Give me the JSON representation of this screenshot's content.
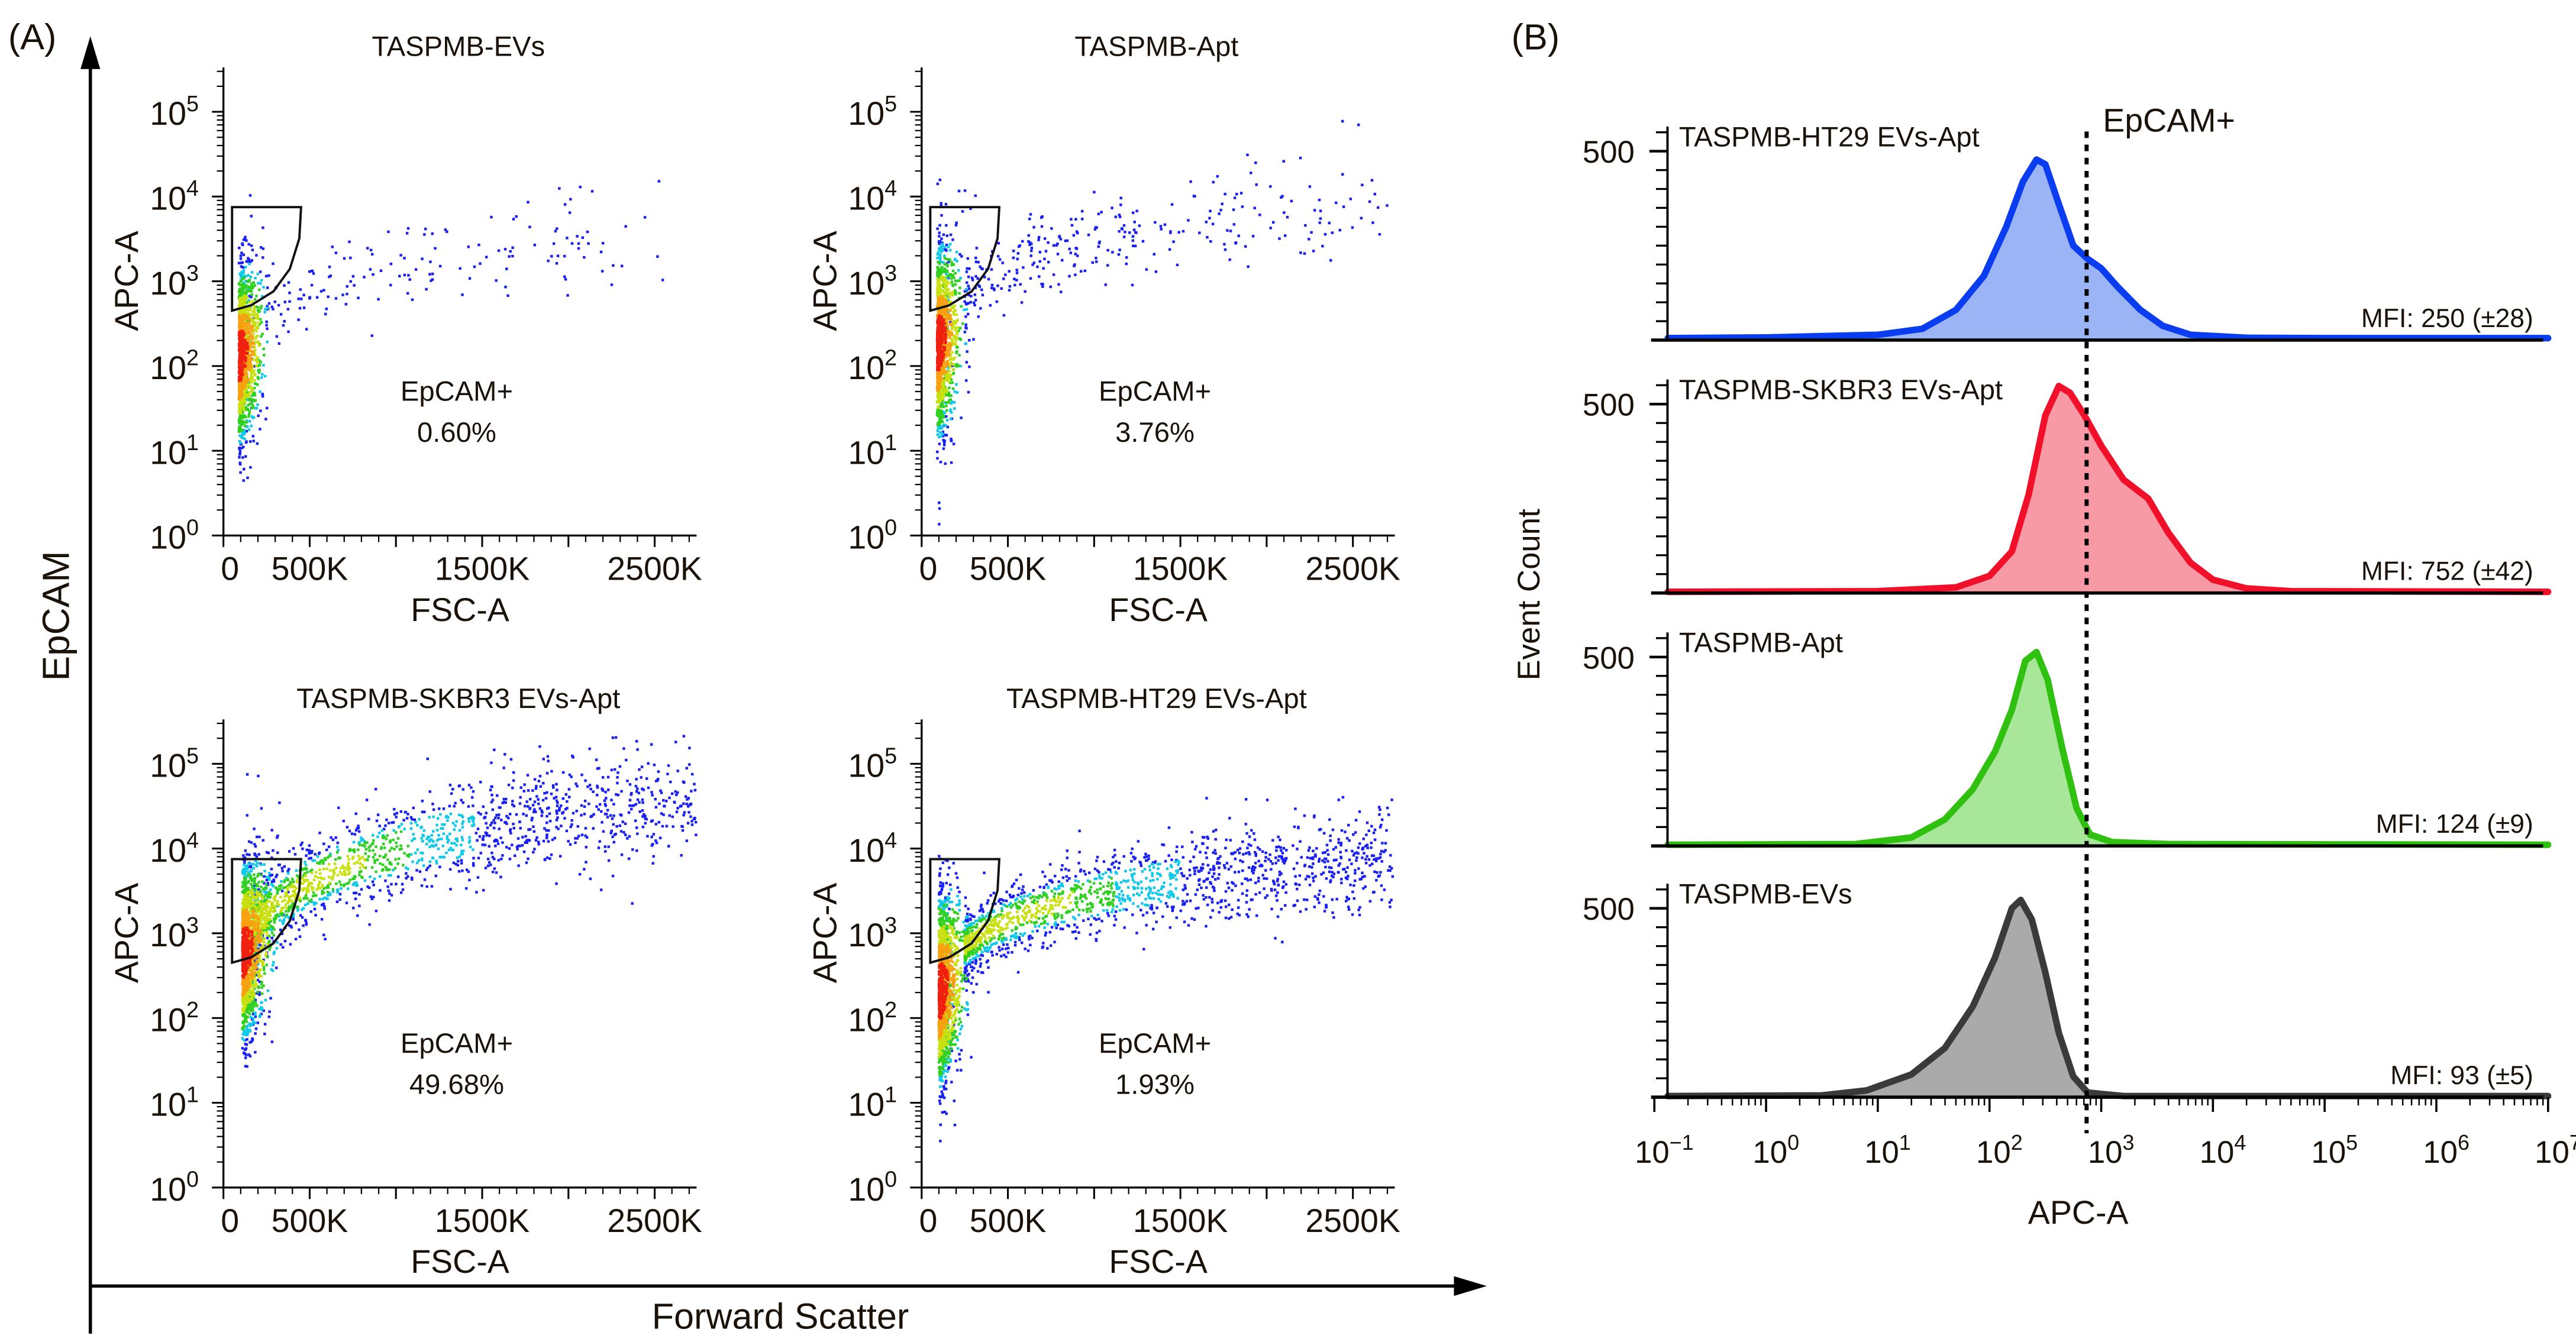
{
  "panel_labels": {
    "a": "(A)",
    "b": "(B)"
  },
  "panel_a": {
    "y_axis_label": "EpCAM",
    "x_axis_label": "Forward Scatter"
  },
  "chart_data": [
    {
      "type": "scatter",
      "title": "TASPMB-EVs",
      "xlabel": "FSC-A",
      "ylabel": "APC-A",
      "x_unit": "K",
      "xlim": [
        0,
        2750
      ],
      "xticks": [
        "0",
        "500K",
        "1500K",
        "2500K"
      ],
      "xtick_values": [
        0,
        500,
        1500,
        2500
      ],
      "y_scale": "log10",
      "ylim_log10": [
        0,
        5.5
      ],
      "ytick_base": "10",
      "ytick_exponents": [
        "0",
        "1",
        "2",
        "3",
        "4",
        "5"
      ],
      "gate": {
        "label": "EpCAM+",
        "percent": "0.60%",
        "polygon": [
          [
            50,
            450
          ],
          [
            160,
            520
          ],
          [
            290,
            760
          ],
          [
            385,
            1400
          ],
          [
            440,
            3200
          ],
          [
            450,
            7500
          ],
          [
            50,
            7500
          ]
        ]
      },
      "population": {
        "core": {
          "x_mean": 90,
          "x_sd": 55,
          "log_y_mean": 2.1,
          "log_y_sd": 0.5,
          "n": 1300
        },
        "tail": {
          "x_start": 250,
          "x_end": 2600,
          "log_y_start": 2.55,
          "log_y_end": 3.55,
          "spread": 0.2,
          "n": 160
        }
      }
    },
    {
      "type": "scatter",
      "title": "TASPMB-Apt",
      "xlabel": "FSC-A",
      "ylabel": "APC-A",
      "x_unit": "K",
      "xlim": [
        0,
        2750
      ],
      "xticks": [
        "0",
        "500K",
        "1500K",
        "2500K"
      ],
      "xtick_values": [
        0,
        500,
        1500,
        2500
      ],
      "y_scale": "log10",
      "ylim_log10": [
        0,
        5.5
      ],
      "ytick_base": "10",
      "ytick_exponents": [
        "0",
        "1",
        "2",
        "3",
        "4",
        "5"
      ],
      "gate": {
        "label": "EpCAM+",
        "percent": "3.76%",
        "polygon": [
          [
            50,
            450
          ],
          [
            160,
            520
          ],
          [
            290,
            760
          ],
          [
            385,
            1400
          ],
          [
            440,
            3200
          ],
          [
            450,
            7500
          ],
          [
            50,
            7500
          ]
        ]
      },
      "population": {
        "core": {
          "x_mean": 90,
          "x_sd": 55,
          "log_y_mean": 2.25,
          "log_y_sd": 0.55,
          "n": 1400
        },
        "tail": {
          "x_start": 250,
          "x_end": 2700,
          "log_y_start": 2.85,
          "log_y_end": 3.95,
          "spread": 0.22,
          "n": 300
        }
      }
    },
    {
      "type": "scatter",
      "title": "TASPMB-SKBR3 EVs-Apt",
      "xlabel": "FSC-A",
      "ylabel": "APC-A",
      "x_unit": "K",
      "xlim": [
        0,
        2750
      ],
      "xticks": [
        "0",
        "500K",
        "1500K",
        "2500K"
      ],
      "xtick_values": [
        0,
        500,
        1500,
        2500
      ],
      "y_scale": "log10",
      "ylim_log10": [
        0,
        5.5
      ],
      "ytick_base": "10",
      "ytick_exponents": [
        "0",
        "1",
        "2",
        "3",
        "4",
        "5"
      ],
      "gate": {
        "label": "EpCAM+",
        "percent": "49.68%",
        "polygon": [
          [
            50,
            450
          ],
          [
            160,
            520
          ],
          [
            290,
            760
          ],
          [
            385,
            1400
          ],
          [
            440,
            3200
          ],
          [
            450,
            7500
          ],
          [
            50,
            7500
          ]
        ]
      },
      "population": {
        "core": {
          "x_mean": 110,
          "x_sd": 70,
          "log_y_mean": 2.75,
          "log_y_sd": 0.5,
          "n": 1500
        },
        "tail": {
          "x_start": 180,
          "x_end": 2750,
          "log_y_start": 3.1,
          "log_y_end": 4.6,
          "spread": 0.24,
          "n": 1500
        }
      }
    },
    {
      "type": "scatter",
      "title": "TASPMB-HT29 EVs-Apt",
      "xlabel": "FSC-A",
      "ylabel": "APC-A",
      "x_unit": "K",
      "xlim": [
        0,
        2750
      ],
      "xticks": [
        "0",
        "500K",
        "1500K",
        "2500K"
      ],
      "xtick_values": [
        0,
        500,
        1500,
        2500
      ],
      "y_scale": "log10",
      "ylim_log10": [
        0,
        5.5
      ],
      "ytick_base": "10",
      "ytick_exponents": [
        "0",
        "1",
        "2",
        "3",
        "4",
        "5"
      ],
      "gate": {
        "label": "EpCAM+",
        "percent": "1.93%",
        "polygon": [
          [
            50,
            450
          ],
          [
            160,
            520
          ],
          [
            290,
            760
          ],
          [
            385,
            1400
          ],
          [
            440,
            3200
          ],
          [
            450,
            7500
          ],
          [
            50,
            7500
          ]
        ]
      },
      "population": {
        "core": {
          "x_mean": 100,
          "x_sd": 60,
          "log_y_mean": 2.3,
          "log_y_sd": 0.55,
          "n": 1500
        },
        "tail": {
          "x_start": 250,
          "x_end": 2750,
          "log_y_start": 2.85,
          "log_y_end": 3.9,
          "spread": 0.2,
          "n": 1500
        }
      }
    },
    {
      "type": "area",
      "xlabel": "APC-A",
      "ylabel": "Event Count",
      "x_scale": "log10",
      "xlim_log10": [
        -0.88,
        7
      ],
      "xtick_base": "10",
      "xtick_exponents": [
        "−1",
        "0",
        "1",
        "2",
        "3",
        "4",
        "5",
        "6",
        "7"
      ],
      "ytick_label": "500",
      "ytick_value": 500,
      "threshold": {
        "label": "EpCAM+",
        "value": 740
      },
      "series": [
        {
          "name": "TASPMB-HT29 EVs-Apt",
          "mfi": "MFI: 250 (±28)",
          "color": "#0a3cf0",
          "fill": "#9ab4f5",
          "points": [
            [
              -0.88,
              5
            ],
            [
              0,
              7
            ],
            [
              1,
              14
            ],
            [
              1.4,
              30
            ],
            [
              1.7,
              80
            ],
            [
              1.95,
              170
            ],
            [
              2.15,
              300
            ],
            [
              2.3,
              420
            ],
            [
              2.42,
              478
            ],
            [
              2.5,
              465
            ],
            [
              2.62,
              360
            ],
            [
              2.75,
              250
            ],
            [
              2.88,
              215
            ],
            [
              3.0,
              190
            ],
            [
              3.15,
              140
            ],
            [
              3.35,
              80
            ],
            [
              3.55,
              38
            ],
            [
              3.8,
              14
            ],
            [
              4.3,
              6
            ],
            [
              5,
              5
            ],
            [
              7,
              5
            ]
          ]
        },
        {
          "name": "TASPMB-SKBR3 EVs-Apt",
          "mfi": "MFI: 752 (±42)",
          "color": "#f0102a",
          "fill": "#f79aa6",
          "points": [
            [
              -0.88,
              3
            ],
            [
              1,
              5
            ],
            [
              1.7,
              15
            ],
            [
              2.0,
              45
            ],
            [
              2.2,
              110
            ],
            [
              2.35,
              260
            ],
            [
              2.5,
              470
            ],
            [
              2.62,
              548
            ],
            [
              2.72,
              530
            ],
            [
              2.85,
              470
            ],
            [
              3.0,
              390
            ],
            [
              3.2,
              300
            ],
            [
              3.42,
              250
            ],
            [
              3.6,
              160
            ],
            [
              3.8,
              80
            ],
            [
              4.0,
              35
            ],
            [
              4.3,
              12
            ],
            [
              4.7,
              5
            ],
            [
              7,
              3
            ]
          ]
        },
        {
          "name": "TASPMB-Apt",
          "mfi": "MFI: 124 (±9)",
          "color": "#30c010",
          "fill": "#a8e69a",
          "points": [
            [
              -0.88,
              3
            ],
            [
              0.8,
              5
            ],
            [
              1.3,
              22
            ],
            [
              1.6,
              70
            ],
            [
              1.85,
              150
            ],
            [
              2.05,
              250
            ],
            [
              2.2,
              360
            ],
            [
              2.32,
              490
            ],
            [
              2.42,
              513
            ],
            [
              2.52,
              440
            ],
            [
              2.65,
              260
            ],
            [
              2.78,
              100
            ],
            [
              2.9,
              30
            ],
            [
              3.1,
              10
            ],
            [
              3.6,
              5
            ],
            [
              7,
              3
            ]
          ]
        },
        {
          "name": "TASPMB-EVs",
          "mfi": "MFI: 93 (±5)",
          "color": "#3a3a3a",
          "fill": "#aaaaaa",
          "points": [
            [
              -0.88,
              3
            ],
            [
              0.5,
              5
            ],
            [
              0.9,
              18
            ],
            [
              1.3,
              60
            ],
            [
              1.6,
              130
            ],
            [
              1.85,
              240
            ],
            [
              2.05,
              370
            ],
            [
              2.2,
              500
            ],
            [
              2.28,
              522
            ],
            [
              2.38,
              470
            ],
            [
              2.5,
              330
            ],
            [
              2.62,
              170
            ],
            [
              2.75,
              55
            ],
            [
              2.88,
              12
            ],
            [
              3.2,
              3
            ],
            [
              7,
              3
            ]
          ]
        }
      ]
    }
  ]
}
